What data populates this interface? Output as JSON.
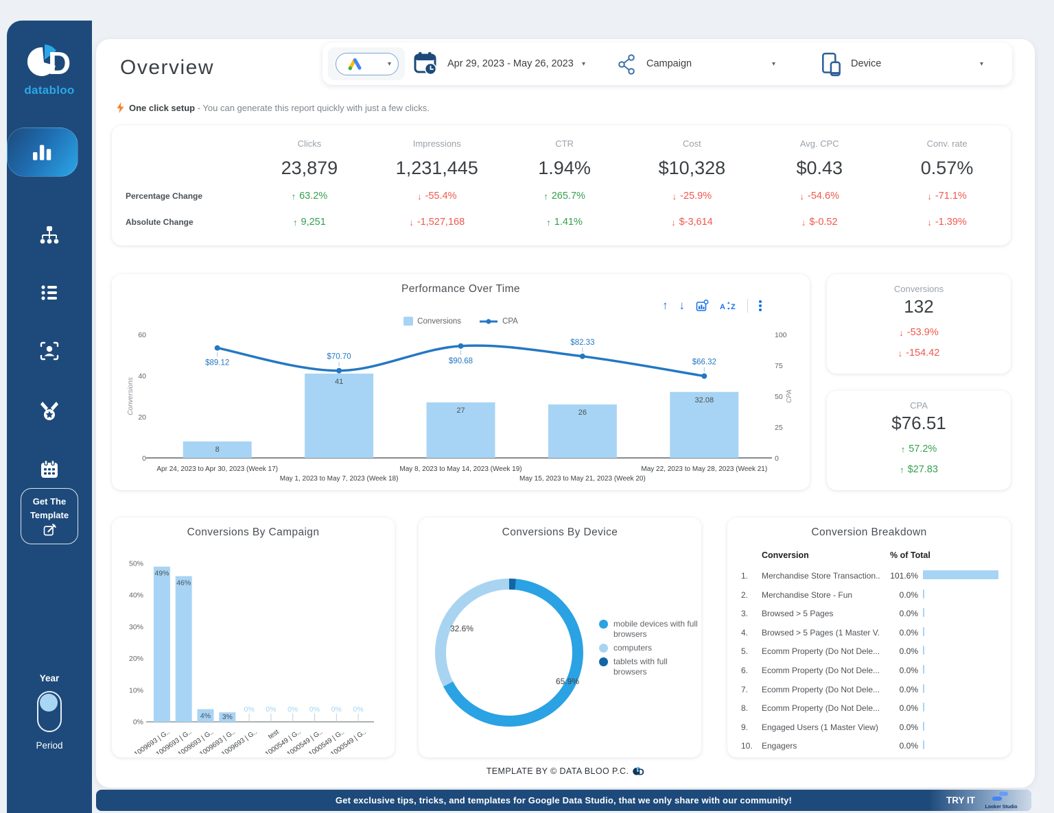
{
  "theme": {
    "sidebar_bg": "#1d4a7a",
    "accent_blue": "#2ba7e8",
    "light_blue": "#a7d4f4",
    "line_blue": "#2478c2",
    "dark_blue": "#1266a5",
    "green": "#34a04e",
    "red": "#ef584c",
    "toolbar_blue": "#1a73e8"
  },
  "sidebar": {
    "brand": "databloo",
    "template_button_line1": "Get The",
    "template_button_line2": "Template",
    "toggle_top": "Year",
    "toggle_bottom": "Period"
  },
  "header": {
    "title": "Overview",
    "date_range": "Apr 29, 2023 - May 26, 2023",
    "campaign_filter": "Campaign",
    "device_filter": "Device"
  },
  "setup_note": {
    "bold": "One click setup",
    "rest": "- You can generate this report quickly with just a few clicks."
  },
  "kpi": {
    "row1_label": "Percentage Change",
    "row2_label": "Absolute Change",
    "metrics": [
      {
        "label": "Clicks",
        "value": "23,879",
        "pct": "63.2%",
        "pct_dir": "up",
        "abs": "9,251",
        "abs_dir": "up"
      },
      {
        "label": "Impressions",
        "value": "1,231,445",
        "pct": "-55.4%",
        "pct_dir": "down",
        "abs": "-1,527,168",
        "abs_dir": "down"
      },
      {
        "label": "CTR",
        "value": "1.94%",
        "pct": "265.7%",
        "pct_dir": "up",
        "abs": "1.41%",
        "abs_dir": "up"
      },
      {
        "label": "Cost",
        "value": "$10,328",
        "pct": "-25.9%",
        "pct_dir": "down",
        "abs": "$-3,614",
        "abs_dir": "down"
      },
      {
        "label": "Avg. CPC",
        "value": "$0.43",
        "pct": "-54.6%",
        "pct_dir": "down",
        "abs": "$-0.52",
        "abs_dir": "down"
      },
      {
        "label": "Conv. rate",
        "value": "0.57%",
        "pct": "-71.1%",
        "pct_dir": "down",
        "abs": "-1.39%",
        "abs_dir": "down"
      }
    ]
  },
  "side_cards": [
    {
      "label": "Conversions",
      "value": "132",
      "pct": "-53.9%",
      "pct_dir": "down",
      "abs": "-154.42",
      "abs_dir": "down"
    },
    {
      "label": "CPA",
      "value": "$76.51",
      "pct": "57.2%",
      "pct_dir": "up",
      "abs": "$27.83",
      "abs_dir": "up"
    }
  ],
  "chart_data": [
    {
      "type": "combo",
      "title": "Performance Over Time",
      "categories": [
        "Apr 24, 2023 to Apr 30, 2023 (Week 17)",
        "May 1, 2023 to May 7, 2023 (Week 18)",
        "May 8, 2023 to May 14, 2023 (Week 19)",
        "May 15, 2023 to May 21, 2023 (Week 20)",
        "May 22, 2023 to May 28, 2023 (Week 21)"
      ],
      "series": [
        {
          "name": "Conversions",
          "chart": "bar",
          "axis": "left",
          "values": [
            8,
            41,
            27,
            26,
            32.08
          ],
          "labels": [
            "8",
            "41",
            "27",
            "26",
            "32.08"
          ],
          "color": "#a7d4f4"
        },
        {
          "name": "CPA",
          "chart": "line",
          "axis": "right",
          "values": [
            89.12,
            70.7,
            90.68,
            82.33,
            66.32
          ],
          "labels": [
            "$89.12",
            "$70.70",
            "$90.68",
            "$82.33",
            "$66.32"
          ],
          "label_side": [
            "below",
            "above",
            "below",
            "above",
            "above"
          ],
          "color": "#2478c2"
        }
      ],
      "left_axis": {
        "title": "Conversions",
        "ticks": [
          0,
          20,
          40,
          60
        ],
        "max": 60
      },
      "right_axis": {
        "title": "CPA",
        "ticks": [
          0,
          25,
          50,
          75,
          100
        ],
        "max": 100
      },
      "legend_position": "top"
    },
    {
      "type": "bar",
      "title": "Conversions By Campaign",
      "categories": [
        "1009693 | G..",
        "1009693 | G..",
        "1009693 | G..",
        "1009693 | G..",
        "1009693 | G..",
        "test",
        "1000549 | G..",
        "1000549 | G..",
        "1000549 | G..",
        "1000549 | G.."
      ],
      "values": [
        49,
        46,
        4,
        3,
        0,
        0,
        0,
        0,
        0,
        0
      ],
      "labels": [
        "49%",
        "46%",
        "4%",
        "3%",
        "0%",
        "0%",
        "0%",
        "0%",
        "0%",
        "0%"
      ],
      "y_ticks": [
        "0%",
        "10%",
        "20%",
        "30%",
        "40%",
        "50%"
      ],
      "ylim": [
        0,
        50
      ],
      "color": "#a7d4f4"
    },
    {
      "type": "pie",
      "title": "Conversions By Device",
      "donut": true,
      "slices": [
        {
          "label": "tablets with full browsers",
          "value": 1.5,
          "color": "#1266a5",
          "callout": ""
        },
        {
          "label": "mobile devices with full browsers",
          "value": 65.9,
          "color": "#2aa2e3",
          "callout": "65.9%"
        },
        {
          "label": "computers",
          "value": 32.6,
          "color": "#a8d4f2",
          "callout": "32.6%"
        }
      ],
      "legend": [
        "mobile devices with full browsers",
        "computers",
        "tablets with full browsers"
      ],
      "legend_position": "right"
    },
    {
      "type": "table",
      "title": "Conversion Breakdown",
      "columns": [
        "Conversion",
        "% of Total"
      ],
      "rows": [
        {
          "rank": "1.",
          "name": "Merchandise Store Transaction...",
          "pct": "101.6%",
          "bar": 101.6
        },
        {
          "rank": "2.",
          "name": "Merchandise Store - Fun",
          "pct": "0.0%",
          "bar": 0
        },
        {
          "rank": "3.",
          "name": "Browsed > 5 Pages",
          "pct": "0.0%",
          "bar": 0
        },
        {
          "rank": "4.",
          "name": "Browsed > 5 Pages (1 Master V...",
          "pct": "0.0%",
          "bar": 0
        },
        {
          "rank": "5.",
          "name": "Ecomm Property (Do Not Dele...",
          "pct": "0.0%",
          "bar": 0
        },
        {
          "rank": "6.",
          "name": "Ecomm Property (Do Not Dele...",
          "pct": "0.0%",
          "bar": 0
        },
        {
          "rank": "7.",
          "name": "Ecomm Property (Do Not Dele...",
          "pct": "0.0%",
          "bar": 0
        },
        {
          "rank": "8.",
          "name": "Ecomm Property (Do Not Dele...",
          "pct": "0.0%",
          "bar": 0
        },
        {
          "rank": "9.",
          "name": "Engaged Users (1 Master View)",
          "pct": "0.0%",
          "bar": 0
        },
        {
          "rank": "10.",
          "name": "Engagers",
          "pct": "0.0%",
          "bar": 0
        }
      ]
    }
  ],
  "footer": {
    "credit": "TEMPLATE BY © DATA BLOO P.C."
  },
  "banner": {
    "text": "Get exclusive tips, tricks, and templates for Google Data Studio, that we only share with our community!",
    "cta": "TRY IT",
    "watermark": "Looker Studio"
  }
}
